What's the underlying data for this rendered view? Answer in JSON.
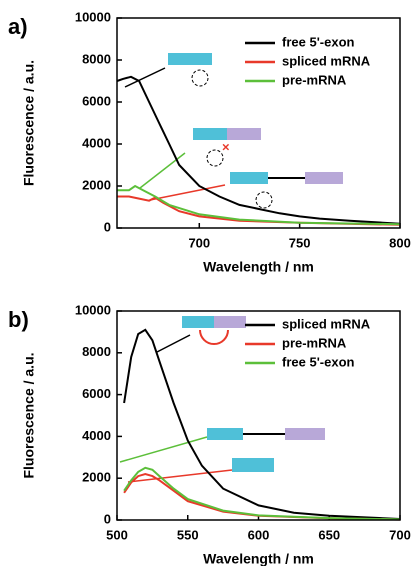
{
  "chart_data": [
    {
      "type": "line",
      "panel_label": "a)",
      "xlabel": "Wavelength / nm",
      "ylabel": "Fluorescence / a.u.",
      "xlim": [
        659,
        800
      ],
      "xticks": [
        700,
        750,
        800
      ],
      "ylim": [
        0,
        10000
      ],
      "yticks": [
        0,
        2000,
        4000,
        6000,
        8000,
        10000
      ],
      "legend": "upper right",
      "series": [
        {
          "name": "free 5'-exon",
          "color": "#000000",
          "x": [
            659,
            662,
            666,
            670,
            675,
            680,
            685,
            690,
            700,
            710,
            720,
            730,
            740,
            750,
            760,
            775,
            800
          ],
          "values": [
            7000,
            7100,
            7200,
            7000,
            6000,
            5000,
            4000,
            3000,
            2000,
            1500,
            1100,
            900,
            700,
            550,
            450,
            350,
            200
          ]
        },
        {
          "name": "spliced mRNA",
          "color": "#e8392a",
          "x": [
            659,
            665,
            670,
            675,
            678,
            682,
            690,
            700,
            720,
            750,
            800
          ],
          "values": [
            1500,
            1500,
            1400,
            1300,
            1450,
            1200,
            800,
            550,
            350,
            250,
            150
          ]
        },
        {
          "name": "pre-mRNA",
          "color": "#5cbf3a",
          "x": [
            659,
            665,
            668,
            672,
            678,
            685,
            700,
            720,
            750,
            800
          ],
          "values": [
            1800,
            1800,
            2000,
            1800,
            1500,
            1100,
            650,
            400,
            250,
            180
          ]
        }
      ]
    },
    {
      "type": "line",
      "panel_label": "b)",
      "xlabel": "Wavelength / nm",
      "ylabel": "Fluorescence / a.u.",
      "xlim": [
        500,
        700
      ],
      "xticks": [
        500,
        550,
        600,
        650,
        700
      ],
      "ylim": [
        0,
        10000
      ],
      "yticks": [
        0,
        2000,
        4000,
        6000,
        8000,
        10000
      ],
      "legend": "upper right",
      "series": [
        {
          "name": "spliced mRNA",
          "color": "#000000",
          "x": [
            505,
            510,
            515,
            520,
            525,
            530,
            540,
            550,
            560,
            575,
            600,
            625,
            650,
            700
          ],
          "values": [
            5600,
            7800,
            8900,
            9100,
            8600,
            7600,
            5600,
            3800,
            2600,
            1500,
            700,
            350,
            200,
            50
          ]
        },
        {
          "name": "pre-mRNA",
          "color": "#e8392a",
          "x": [
            505,
            510,
            515,
            520,
            525,
            530,
            540,
            550,
            575,
            600,
            650,
            700
          ],
          "values": [
            1300,
            1800,
            2100,
            2200,
            2100,
            1900,
            1400,
            900,
            400,
            200,
            80,
            20
          ]
        },
        {
          "name": "free 5'-exon",
          "color": "#5cbf3a",
          "x": [
            505,
            510,
            515,
            520,
            525,
            530,
            540,
            550,
            575,
            600,
            650,
            700
          ],
          "values": [
            1400,
            1900,
            2300,
            2500,
            2400,
            2100,
            1500,
            1000,
            450,
            220,
            90,
            30
          ]
        }
      ]
    }
  ]
}
